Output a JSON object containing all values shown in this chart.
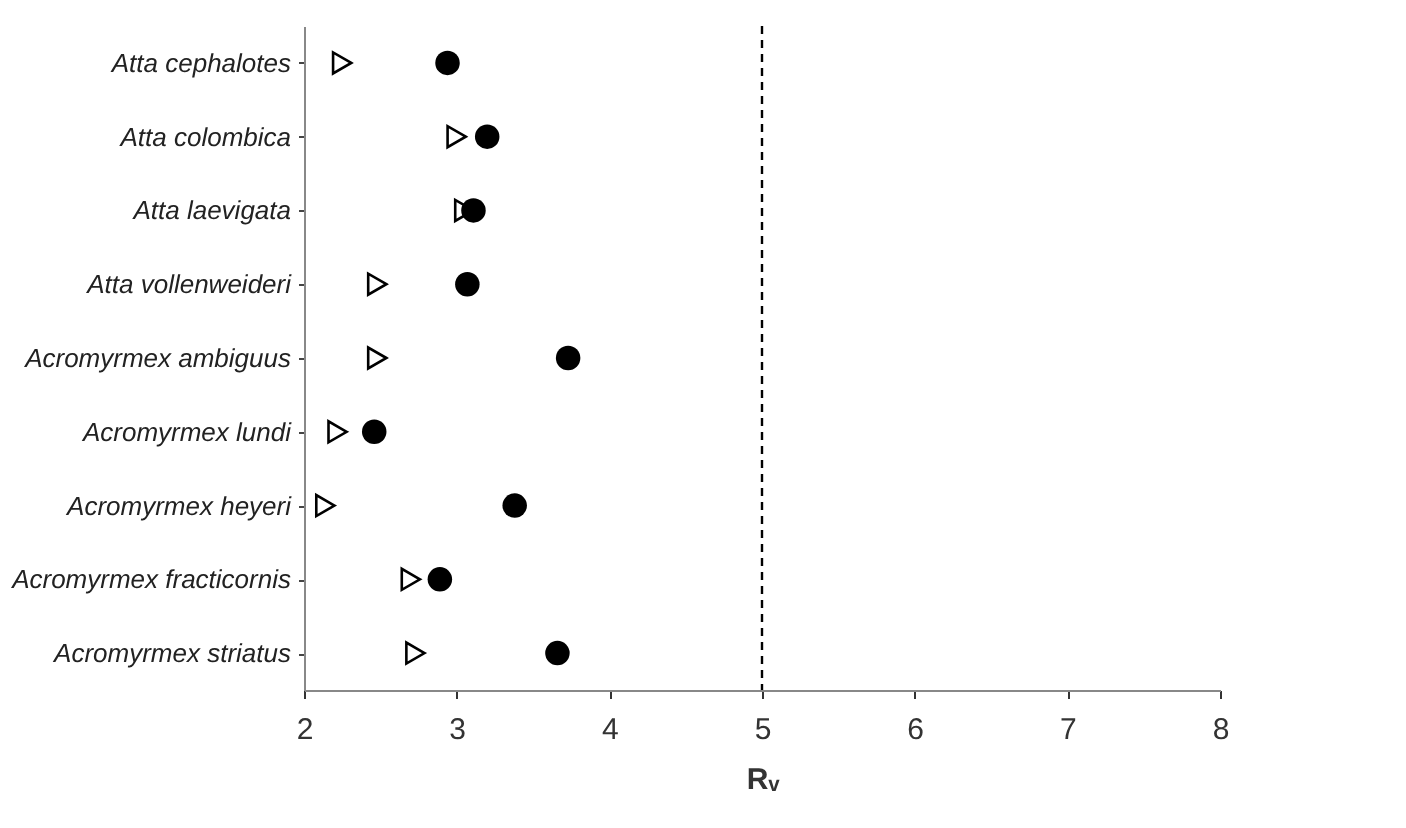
{
  "chart_data": {
    "type": "scatter",
    "xlabel": "Rᵥ",
    "categories": [
      "Atta cephalotes",
      "Atta colombica",
      "Atta laevigata",
      "Atta vollenweideri",
      "Acromyrmex ambiguus",
      "Acromyrmex lundi",
      "Acromyrmex heyeri",
      "Acromyrmex fracticornis",
      "Acromyrmex striatus"
    ],
    "orientation": "horizontal",
    "series": [
      {
        "color": "#000000",
        "marker": "triangle",
        "values": [
          2.25,
          3.0,
          3.05,
          2.48,
          2.48,
          2.22,
          2.14,
          2.7,
          2.73
        ]
      },
      {
        "color": "#000000",
        "marker": "circle",
        "values": [
          2.94,
          3.2,
          3.11,
          3.07,
          3.73,
          2.46,
          3.38,
          2.89,
          3.66
        ]
      }
    ],
    "xlim": [
      2,
      8
    ],
    "xticks": [
      2,
      3,
      4,
      5,
      6,
      7,
      8
    ],
    "ref_lines": [
      {
        "axis": "x",
        "value": 5,
        "line_style": "dashed",
        "color": "#000000"
      }
    ]
  }
}
